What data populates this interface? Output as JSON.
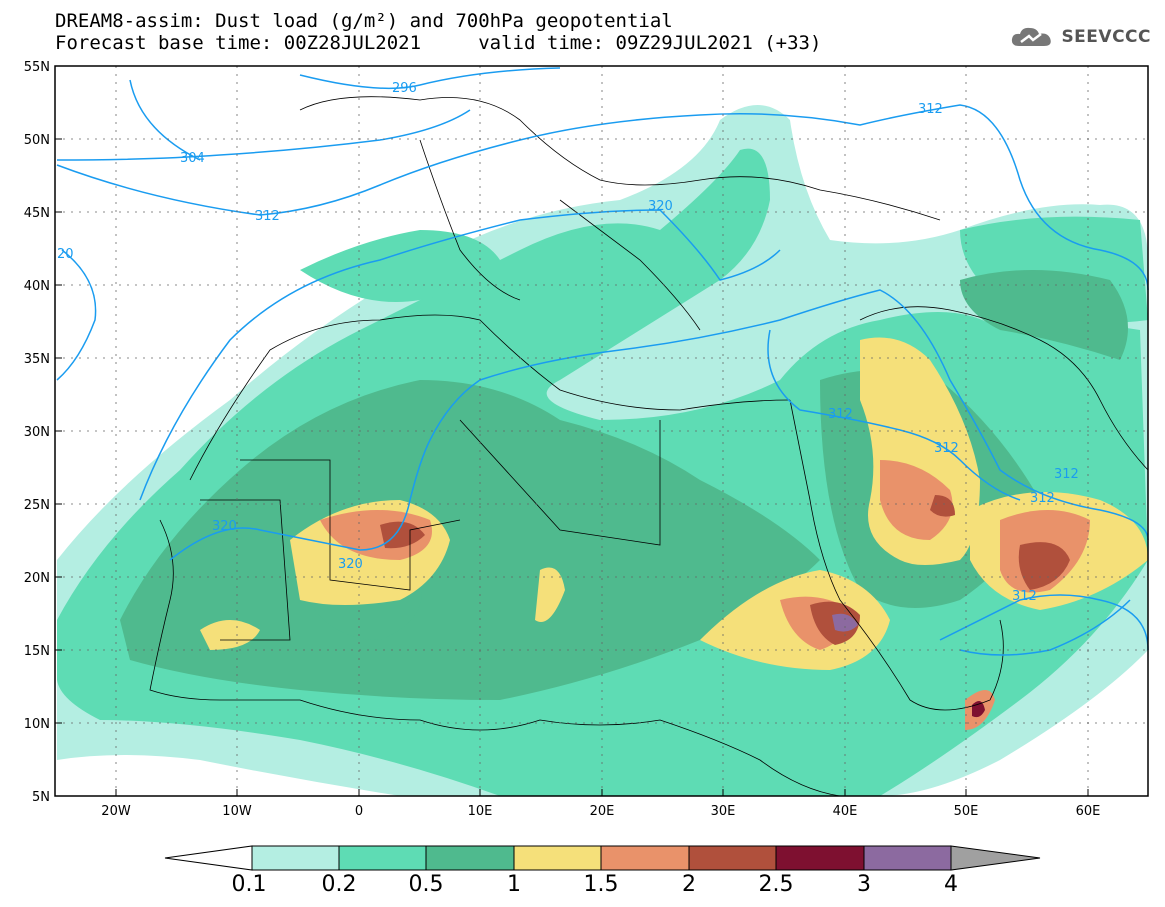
{
  "title_line1": "DREAM8-assim: Dust load (g/m²) and 700hPa geopotential",
  "title_line2": "Forecast base time: 00Z28JUL2021     valid time: 09Z29JUL2021 (+33)",
  "logo": {
    "text": "SEEVCCC",
    "icon": "cloud-icon"
  },
  "axes": {
    "lat_labels": [
      "55N",
      "50N",
      "45N",
      "40N",
      "35N",
      "30N",
      "25N",
      "20N",
      "15N",
      "10N",
      "5N"
    ],
    "lon_labels": [
      "20W",
      "10W",
      "0",
      "10E",
      "20E",
      "30E",
      "40E",
      "50E",
      "60E"
    ]
  },
  "contour_labels": [
    "296",
    "304",
    "312",
    "320",
    "20",
    "312",
    "312",
    "320",
    "312",
    "320",
    "312",
    "312",
    "312",
    "312"
  ],
  "colorbar": {
    "labels": [
      "0.1",
      "0.2",
      "0.5",
      "1",
      "1.5",
      "2",
      "2.5",
      "3",
      "4"
    ],
    "colors": [
      "#ffffff",
      "#b4eee2",
      "#5edcb4",
      "#4fba8e",
      "#f5e07a",
      "#e9926a",
      "#b0503c",
      "#7e1030",
      "#8c6aa0",
      "#a0a0a0"
    ]
  },
  "colors": {
    "land": "#ffffff",
    "contour": "#1a9cf0",
    "border": "#000000"
  }
}
